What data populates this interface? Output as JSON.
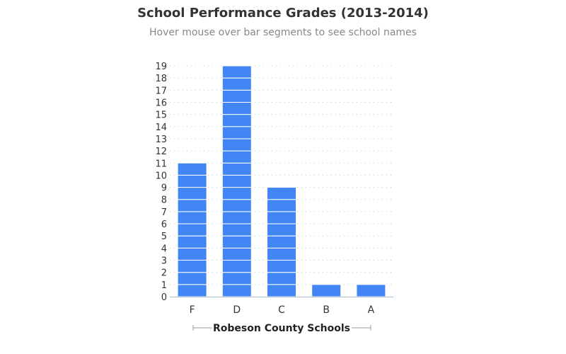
{
  "chart_data": {
    "type": "bar",
    "title": "School Performance Grades (2013-2014)",
    "subtitle": "Hover mouse over bar segments to see school names",
    "categories": [
      "F",
      "D",
      "C",
      "B",
      "A"
    ],
    "values": [
      11,
      19,
      9,
      1,
      1
    ],
    "xlabel": "Robeson County Schools",
    "ylabel": "",
    "ylim": [
      0,
      19
    ],
    "yticks": [
      0,
      1,
      2,
      3,
      4,
      5,
      6,
      7,
      8,
      9,
      10,
      11,
      12,
      13,
      14,
      15,
      16,
      17,
      18,
      19
    ],
    "grid": true,
    "stacked_segments": true
  },
  "colors": {
    "bar": "#4285f4",
    "segment_line": "#ffffff",
    "grid": "#c8c8c8",
    "axis": "#aabbcc"
  }
}
